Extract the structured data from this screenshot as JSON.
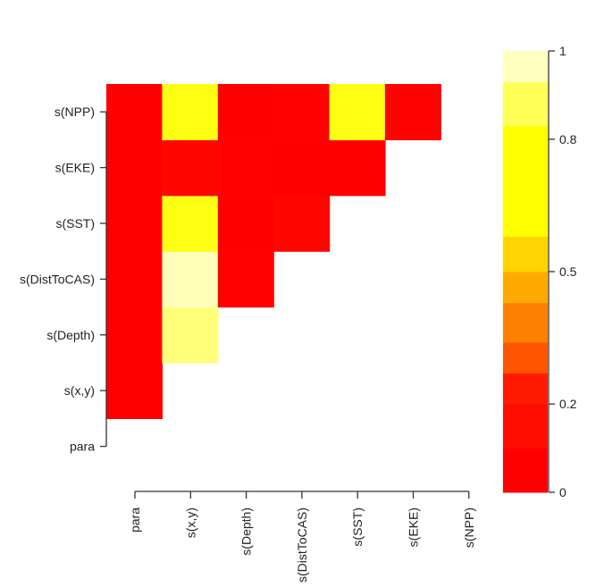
{
  "chart_data": [
    {
      "type": "heatmap",
      "title": "",
      "xlabel": "",
      "ylabel": "",
      "x_labels": [
        "para",
        "s(x,y)",
        "s(Depth)",
        "s(DistToCAS)",
        "s(SST)",
        "s(EKE)",
        "s(NPP)"
      ],
      "y_labels": [
        "para",
        "s(x,y)",
        "s(Depth)",
        "s(DistToCAS)",
        "s(SST)",
        "s(EKE)",
        "s(NPP)"
      ],
      "cells": [
        {
          "row": "s(x,y)",
          "col": "para",
          "value": 0.0
        },
        {
          "row": "s(Depth)",
          "col": "para",
          "value": 0.0
        },
        {
          "row": "s(Depth)",
          "col": "s(x,y)",
          "value": 0.9
        },
        {
          "row": "s(DistToCAS)",
          "col": "para",
          "value": 0.0
        },
        {
          "row": "s(DistToCAS)",
          "col": "s(x,y)",
          "value": 0.97
        },
        {
          "row": "s(DistToCAS)",
          "col": "s(Depth)",
          "value": 0.02
        },
        {
          "row": "s(SST)",
          "col": "para",
          "value": 0.0
        },
        {
          "row": "s(SST)",
          "col": "s(x,y)",
          "value": 0.8
        },
        {
          "row": "s(SST)",
          "col": "s(Depth)",
          "value": 0.0
        },
        {
          "row": "s(SST)",
          "col": "s(DistToCAS)",
          "value": 0.05
        },
        {
          "row": "s(EKE)",
          "col": "para",
          "value": 0.0
        },
        {
          "row": "s(EKE)",
          "col": "s(x,y)",
          "value": 0.05
        },
        {
          "row": "s(EKE)",
          "col": "s(Depth)",
          "value": 0.02
        },
        {
          "row": "s(EKE)",
          "col": "s(DistToCAS)",
          "value": 0.0
        },
        {
          "row": "s(EKE)",
          "col": "s(SST)",
          "value": 0.0
        },
        {
          "row": "s(NPP)",
          "col": "para",
          "value": 0.0
        },
        {
          "row": "s(NPP)",
          "col": "s(x,y)",
          "value": 0.8
        },
        {
          "row": "s(NPP)",
          "col": "s(Depth)",
          "value": 0.0
        },
        {
          "row": "s(NPP)",
          "col": "s(DistToCAS)",
          "value": 0.02
        },
        {
          "row": "s(NPP)",
          "col": "s(SST)",
          "value": 0.8
        },
        {
          "row": "s(NPP)",
          "col": "s(EKE)",
          "value": 0.03
        }
      ],
      "colorbar": {
        "range": [
          0,
          1
        ],
        "ticks": [
          "0",
          "0.2",
          "0.5",
          "0.8",
          "1"
        ],
        "tick_values": [
          0,
          0.2,
          0.5,
          0.8,
          1
        ],
        "position": "right"
      }
    }
  ],
  "palette": {
    "stops": [
      {
        "v": 0.0,
        "c": "#ff0000"
      },
      {
        "v": 0.25,
        "c": "#ff1a00"
      },
      {
        "v": 0.34,
        "c": "#ff5500"
      },
      {
        "v": 0.45,
        "c": "#ff8800"
      },
      {
        "v": 0.55,
        "c": "#ffb300"
      },
      {
        "v": 0.65,
        "c": "#ffde00"
      },
      {
        "v": 0.78,
        "c": "#ffff00"
      },
      {
        "v": 0.88,
        "c": "#ffff66"
      },
      {
        "v": 1.0,
        "c": "#ffffd6"
      }
    ],
    "colorbar_bands": [
      {
        "from": 0.0,
        "to": 0.1,
        "c": "#ff0000"
      },
      {
        "from": 0.1,
        "to": 0.2,
        "c": "#ff0d00"
      },
      {
        "from": 0.2,
        "to": 0.27,
        "c": "#ff1a00"
      },
      {
        "from": 0.27,
        "to": 0.34,
        "c": "#ff5500"
      },
      {
        "from": 0.34,
        "to": 0.43,
        "c": "#ff8000"
      },
      {
        "from": 0.43,
        "to": 0.5,
        "c": "#ffaa00"
      },
      {
        "from": 0.5,
        "to": 0.58,
        "c": "#ffd400"
      },
      {
        "from": 0.58,
        "to": 0.72,
        "c": "#ffff00"
      },
      {
        "from": 0.72,
        "to": 0.83,
        "c": "#ffff00"
      },
      {
        "from": 0.83,
        "to": 0.93,
        "c": "#ffff55"
      },
      {
        "from": 0.93,
        "to": 1.0,
        "c": "#ffffbf"
      }
    ]
  }
}
